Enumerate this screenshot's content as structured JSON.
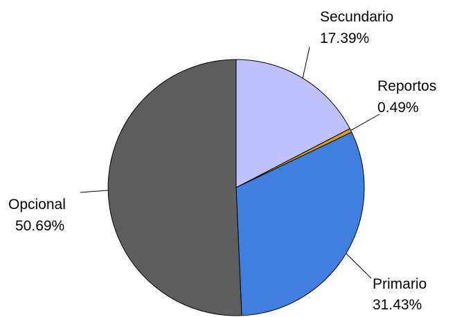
{
  "chart_data": {
    "type": "pie",
    "start": "12 o'clock",
    "direction": "clockwise",
    "slices": [
      {
        "label": "Secundario",
        "percent_label": "17.39%",
        "value": 17.39,
        "color": "#c0c0ff"
      },
      {
        "label": "Reportos",
        "percent_label": "0.49%",
        "value": 0.49,
        "color": "#d4a017"
      },
      {
        "label": "Primario",
        "percent_label": "31.43%",
        "value": 31.43,
        "color": "#3e7fdf"
      },
      {
        "label": "Opcional",
        "percent_label": "50.69%",
        "value": 50.69,
        "color": "#5e5e5e"
      }
    ]
  }
}
